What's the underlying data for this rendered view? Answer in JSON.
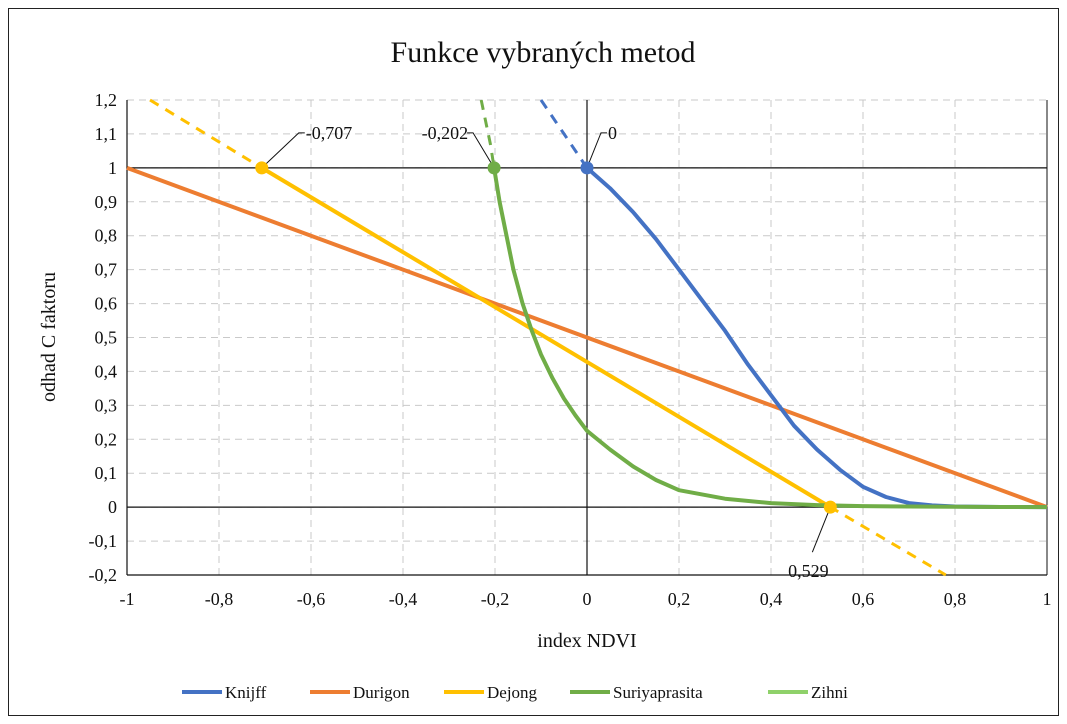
{
  "chart_data": {
    "type": "line",
    "title": "Funkce vybraných metod",
    "xlabel": "index NDVI",
    "ylabel": "odhad C faktoru",
    "xlim": [
      -1,
      1
    ],
    "ylim": [
      -0.2,
      1.2
    ],
    "x_ticks": [
      "-1",
      "-0,8",
      "-0,6",
      "-0,4",
      "-0,2",
      "0",
      "0,2",
      "0,4",
      "0,6",
      "0,8",
      "1"
    ],
    "y_ticks": [
      "-0,2",
      "-0,1",
      "0",
      "0,1",
      "0,2",
      "0,3",
      "0,4",
      "0,5",
      "0,6",
      "0,7",
      "0,8",
      "0,9",
      "1",
      "1,1",
      "1,2"
    ],
    "grid": "dashed",
    "legend_position": "bottom",
    "series": [
      {
        "name": "Knijff",
        "color": "#4472C4",
        "solid": [
          [
            0,
            1
          ],
          [
            0.05,
            0.94
          ],
          [
            0.1,
            0.87
          ],
          [
            0.15,
            0.79
          ],
          [
            0.2,
            0.7
          ],
          [
            0.25,
            0.61
          ],
          [
            0.3,
            0.52
          ],
          [
            0.35,
            0.42
          ],
          [
            0.4,
            0.33
          ],
          [
            0.45,
            0.24
          ],
          [
            0.5,
            0.17
          ],
          [
            0.55,
            0.11
          ],
          [
            0.6,
            0.06
          ],
          [
            0.65,
            0.03
          ],
          [
            0.7,
            0.012
          ],
          [
            0.75,
            0.005
          ],
          [
            0.8,
            0.002
          ],
          [
            0.9,
            0.0005
          ],
          [
            1,
            0.0001
          ]
        ],
        "dashed": [
          [
            -0.1,
            1.2
          ],
          [
            -0.05,
            1.1
          ],
          [
            0,
            1
          ]
        ]
      },
      {
        "name": "Durigon",
        "color": "#ED7D31",
        "solid": [
          [
            -1,
            1
          ],
          [
            1,
            0
          ]
        ],
        "dashed": []
      },
      {
        "name": "Dejong",
        "color": "#FFC000",
        "solid": [
          [
            -0.707,
            1
          ],
          [
            0.529,
            0
          ]
        ],
        "dashed": [
          [
            -0.95,
            1.2
          ],
          [
            -0.707,
            1
          ],
          [
            0.529,
            0
          ],
          [
            0.78,
            -0.2
          ]
        ]
      },
      {
        "name": "Suriyaprasita",
        "color": "#70AD47",
        "solid": [
          [
            -0.202,
            1
          ],
          [
            -0.19,
            0.9
          ],
          [
            -0.175,
            0.8
          ],
          [
            -0.16,
            0.7
          ],
          [
            -0.14,
            0.6
          ],
          [
            -0.12,
            0.52
          ],
          [
            -0.1,
            0.45
          ],
          [
            -0.075,
            0.38
          ],
          [
            -0.05,
            0.32
          ],
          [
            -0.025,
            0.27
          ],
          [
            0,
            0.225
          ],
          [
            0.05,
            0.17
          ],
          [
            0.1,
            0.12
          ],
          [
            0.15,
            0.08
          ],
          [
            0.2,
            0.05
          ],
          [
            0.3,
            0.025
          ],
          [
            0.4,
            0.012
          ],
          [
            0.5,
            0.006
          ],
          [
            0.6,
            0.003
          ],
          [
            0.7,
            0.002
          ],
          [
            0.8,
            0.001
          ],
          [
            0.9,
            0.0005
          ],
          [
            1,
            0.0002
          ]
        ],
        "dashed": [
          [
            -0.23,
            1.2
          ],
          [
            -0.21,
            1.07
          ],
          [
            -0.202,
            1
          ]
        ]
      },
      {
        "name": "Zihni",
        "color": "#8FD16A",
        "solid": [],
        "dashed": []
      }
    ],
    "annotations": [
      {
        "label": "-0,707",
        "point": [
          -0.707,
          1
        ],
        "color": "#FFC000"
      },
      {
        "label": "-0,202",
        "point": [
          -0.202,
          1
        ],
        "color": "#70AD47"
      },
      {
        "label": "0",
        "point": [
          0,
          1
        ],
        "color": "#4472C4"
      },
      {
        "label": "0,529",
        "point": [
          0.529,
          0
        ],
        "color": "#FFC000"
      }
    ]
  }
}
